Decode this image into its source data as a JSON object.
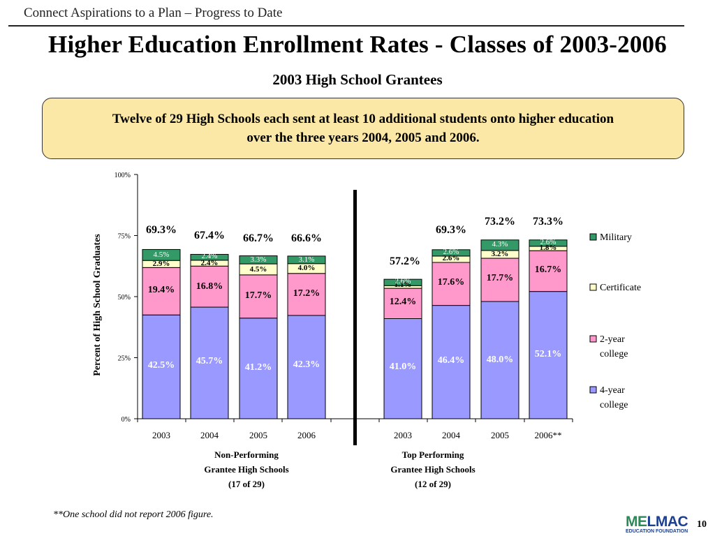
{
  "header": {
    "section_title": "Connect Aspirations to a Plan – Progress to Date",
    "main_title": "Higher Education Enrollment Rates - Classes of 2003-2006",
    "subtitle": "2003 High School Grantees"
  },
  "callout": {
    "line1": "Twelve of 29 High Schools each sent at least 10 additional students onto higher education",
    "line2": "over the three years 2004, 2005 and 2006."
  },
  "colors": {
    "four_year": "#9999ff",
    "two_year": "#ff99cc",
    "certificate": "#ffffcc",
    "military": "#339966",
    "callout_bg": "#fbe8a6"
  },
  "chart_data": {
    "type": "bar",
    "stacked": true,
    "ylabel": "Percent of High School Graduates",
    "ylim": [
      0,
      100
    ],
    "yticks": [
      "0%",
      "25%",
      "50%",
      "75%",
      "100%"
    ],
    "legend_position": "right",
    "categories": [
      "2003",
      "2004",
      "2005",
      "2006",
      "2003",
      "2004",
      "2005",
      "2006**"
    ],
    "groups": [
      {
        "line1": "Non-Performing",
        "line2": "Grantee High Schools",
        "line3": "(17 of 29)"
      },
      {
        "line1": "Top Performing",
        "line2": "Grantee High Schools",
        "line3": "(12 of 29)"
      }
    ],
    "series": [
      {
        "name": "4-year college",
        "values": [
          42.5,
          45.7,
          41.2,
          42.3,
          41.0,
          46.4,
          48.0,
          52.1
        ],
        "labels": [
          "42.5%",
          "45.7%",
          "41.2%",
          "42.3%",
          "41.0%",
          "46.4%",
          "48.0%",
          "52.1%"
        ]
      },
      {
        "name": "2-year college",
        "values": [
          19.4,
          16.8,
          17.7,
          17.2,
          12.4,
          17.6,
          17.7,
          16.7
        ],
        "labels": [
          "19.4%",
          "16.8%",
          "17.7%",
          "17.2%",
          "12.4%",
          "17.6%",
          "17.7%",
          "16.7%"
        ]
      },
      {
        "name": "Certificate",
        "values": [
          2.9,
          2.4,
          4.5,
          4.0,
          1.1,
          2.6,
          3.2,
          1.8
        ],
        "labels": [
          "2.9%",
          "2.4%",
          "4.5%",
          "4.0%",
          "1.1%",
          "2.6%",
          "3.2%",
          "1.8%"
        ]
      },
      {
        "name": "Military",
        "values": [
          4.5,
          2.4,
          3.3,
          3.1,
          2.6,
          2.6,
          4.3,
          2.6
        ],
        "labels": [
          "4.5%",
          "2.4%",
          "3.3%",
          "3.1%",
          "2.6%",
          "2.6%",
          "4.3%",
          "2.6%"
        ]
      }
    ],
    "totals": [
      "69.3%",
      "67.4%",
      "66.7%",
      "66.6%",
      "57.2%",
      "69.3%",
      "73.2%",
      "73.3%"
    ]
  },
  "footnote": "**One school did not report 2006 figure.",
  "logo": {
    "part1": "ME",
    "part2": "LMAC",
    "sub": "EDUCATION FOUNDATION"
  },
  "page_number": "10"
}
